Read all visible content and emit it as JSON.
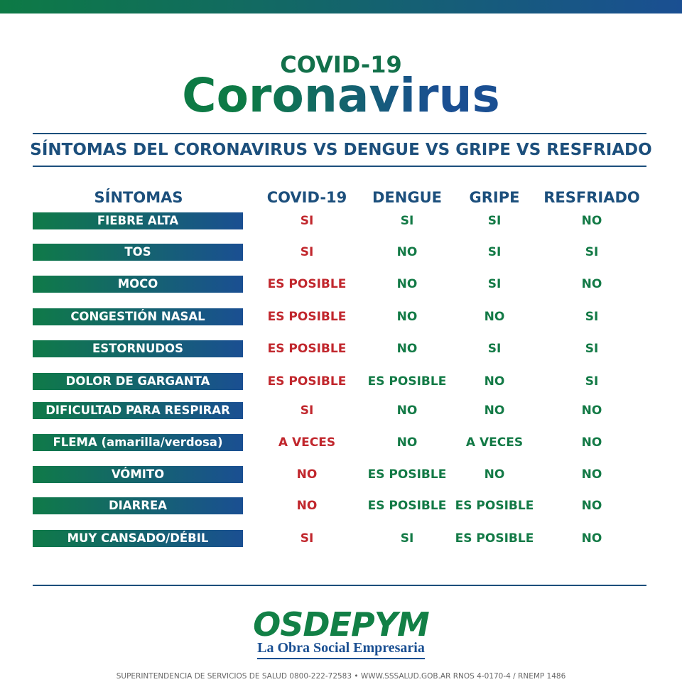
{
  "header": {
    "top": "COVID-19",
    "title": "Coronavirus",
    "subtitle": "SÍNTOMAS DEL CORONAVIRUS VS DENGUE VS GRIPE VS RESFRIADO"
  },
  "table": {
    "columns": [
      "SÍNTOMAS",
      "COVID-19",
      "DENGUE",
      "GRIPE",
      "RESFRIADO"
    ],
    "rows": [
      [
        "FIEBRE ALTA",
        "SI",
        "SI",
        "SI",
        "NO"
      ],
      [
        "TOS",
        "SI",
        "NO",
        "SI",
        "SI"
      ],
      [
        "MOCO",
        "ES POSIBLE",
        "NO",
        "SI",
        "NO"
      ],
      [
        "CONGESTIÓN NASAL",
        "ES POSIBLE",
        "NO",
        "NO",
        "SI"
      ],
      [
        "ESTORNUDOS",
        "ES POSIBLE",
        "NO",
        "SI",
        "SI"
      ],
      [
        "DOLOR DE GARGANTA",
        "ES POSIBLE",
        "ES POSIBLE",
        "NO",
        "SI"
      ],
      [
        "DIFICULTAD PARA RESPIRAR",
        "SI",
        "NO",
        "NO",
        "NO"
      ],
      [
        "FLEMA (amarilla/verdosa)",
        "A VECES",
        "NO",
        "A VECES",
        "NO"
      ],
      [
        "VÓMITO",
        "NO",
        "ES POSIBLE",
        "NO",
        "NO"
      ],
      [
        "DIARREA",
        "NO",
        "ES POSIBLE",
        "ES POSIBLE",
        "NO"
      ],
      [
        "MUY CANSADO/DÉBIL",
        "SI",
        "SI",
        "ES POSIBLE",
        "NO"
      ]
    ]
  },
  "footer": {
    "logo": "OSDEPYM",
    "tagline": "La Obra Social Empresaria",
    "legal": "SUPERINTENDENCIA DE SERVICIOS DE SALUD 0800-222-72583 • WWW.SSSALUD.GOB.AR  RNOS 4-0170-4  / RNEMP 1486"
  }
}
